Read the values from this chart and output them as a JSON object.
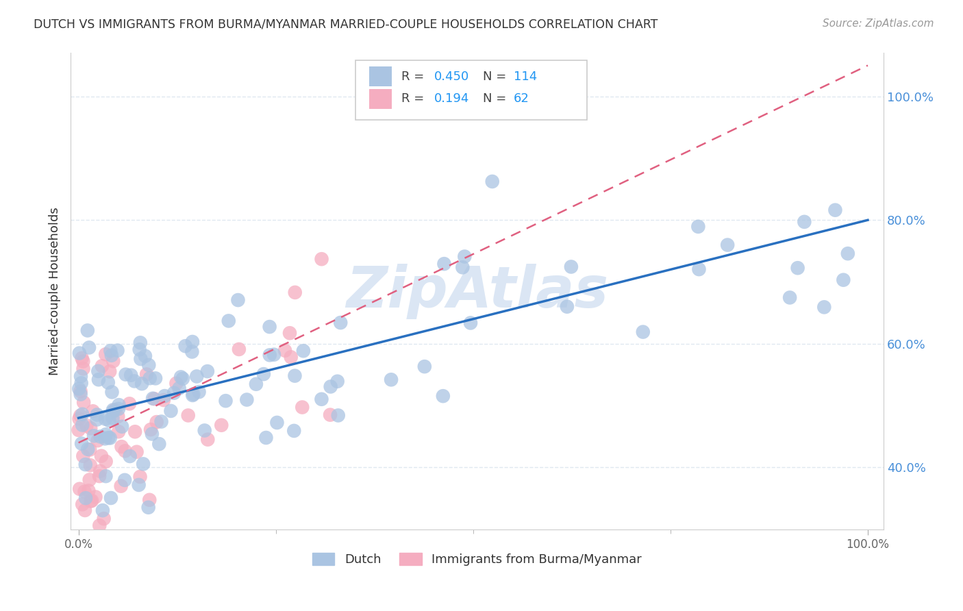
{
  "title": "DUTCH VS IMMIGRANTS FROM BURMA/MYANMAR MARRIED-COUPLE HOUSEHOLDS CORRELATION CHART",
  "source": "Source: ZipAtlas.com",
  "ylabel": "Married-couple Households",
  "dutch_R": 0.45,
  "dutch_N": 114,
  "burma_R": 0.194,
  "burma_N": 62,
  "dutch_color": "#aac4e2",
  "burma_color": "#f5adc0",
  "dutch_line_color": "#2970c0",
  "burma_line_color": "#e06080",
  "background_color": "#ffffff",
  "grid_color": "#e0e8f0",
  "watermark_color": "#ccdcf0",
  "title_color": "#333333",
  "source_color": "#999999",
  "tick_color": "#4a90d9",
  "axis_color": "#cccccc",
  "legend_value_color": "#2196f3",
  "legend_label_color": "#444444",
  "xlim": [
    -0.01,
    1.02
  ],
  "ylim": [
    0.3,
    1.07
  ],
  "yticks": [
    0.4,
    0.6,
    0.8,
    1.0
  ],
  "ytick_labels": [
    "40.0%",
    "60.0%",
    "80.0%",
    "100.0%"
  ],
  "xticks": [
    0.0,
    1.0
  ],
  "xtick_labels": [
    "0.0%",
    "100.0%"
  ],
  "dutch_line_x0": 0.0,
  "dutch_line_y0": 0.48,
  "dutch_line_x1": 1.0,
  "dutch_line_y1": 0.8,
  "burma_line_x0": 0.0,
  "burma_line_y0": 0.44,
  "burma_line_x1": 1.0,
  "burma_line_y1": 1.05
}
